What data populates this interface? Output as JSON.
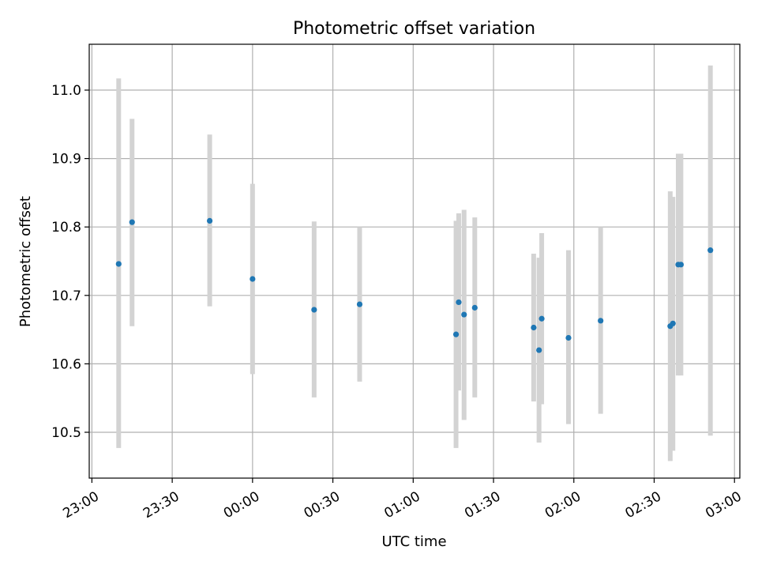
{
  "chart_data": {
    "type": "scatter",
    "title": "Photometric offset variation",
    "xlabel": "UTC time",
    "ylabel": "Photometric offset",
    "x_axis_kind": "time",
    "xlim": [
      "22:59",
      "03:02"
    ],
    "ylim": [
      10.433,
      11.067
    ],
    "grid": true,
    "x_ticks": [
      "23:00",
      "23:30",
      "00:00",
      "00:30",
      "01:00",
      "01:30",
      "02:00",
      "02:30",
      "03:00"
    ],
    "y_ticks": [
      10.5,
      10.6,
      10.7,
      10.8,
      10.9,
      11.0
    ],
    "errorbar_color": "#d3d3d3",
    "point_color": "#1f77b4",
    "points": [
      {
        "t": "23:10",
        "y": 10.746,
        "ylow": 10.477,
        "yhigh": 11.017
      },
      {
        "t": "23:15",
        "y": 10.807,
        "ylow": 10.655,
        "yhigh": 10.958
      },
      {
        "t": "23:44",
        "y": 10.809,
        "ylow": 10.684,
        "yhigh": 10.935
      },
      {
        "t": "24:00",
        "y": 10.724,
        "ylow": 10.585,
        "yhigh": 10.863
      },
      {
        "t": "24:23",
        "y": 10.679,
        "ylow": 10.551,
        "yhigh": 10.808
      },
      {
        "t": "24:40",
        "y": 10.687,
        "ylow": 10.574,
        "yhigh": 10.8
      },
      {
        "t": "25:16",
        "y": 10.643,
        "ylow": 10.477,
        "yhigh": 10.809
      },
      {
        "t": "25:17",
        "y": 10.69,
        "ylow": 10.561,
        "yhigh": 10.82
      },
      {
        "t": "25:19",
        "y": 10.672,
        "ylow": 10.518,
        "yhigh": 10.825
      },
      {
        "t": "25:23",
        "y": 10.682,
        "ylow": 10.551,
        "yhigh": 10.814
      },
      {
        "t": "25:45",
        "y": 10.653,
        "ylow": 10.545,
        "yhigh": 10.761
      },
      {
        "t": "25:47",
        "y": 10.62,
        "ylow": 10.485,
        "yhigh": 10.755
      },
      {
        "t": "25:48",
        "y": 10.666,
        "ylow": 10.541,
        "yhigh": 10.791
      },
      {
        "t": "25:58",
        "y": 10.638,
        "ylow": 10.512,
        "yhigh": 10.766
      },
      {
        "t": "26:10",
        "y": 10.663,
        "ylow": 10.527,
        "yhigh": 10.8
      },
      {
        "t": "26:36",
        "y": 10.655,
        "ylow": 10.458,
        "yhigh": 10.852
      },
      {
        "t": "26:37",
        "y": 10.659,
        "ylow": 10.473,
        "yhigh": 10.844
      },
      {
        "t": "26:39",
        "y": 10.745,
        "ylow": 10.583,
        "yhigh": 10.907
      },
      {
        "t": "26:40",
        "y": 10.745,
        "ylow": 10.583,
        "yhigh": 10.907
      },
      {
        "t": "26:51",
        "y": 10.766,
        "ylow": 10.495,
        "yhigh": 11.036
      }
    ]
  }
}
